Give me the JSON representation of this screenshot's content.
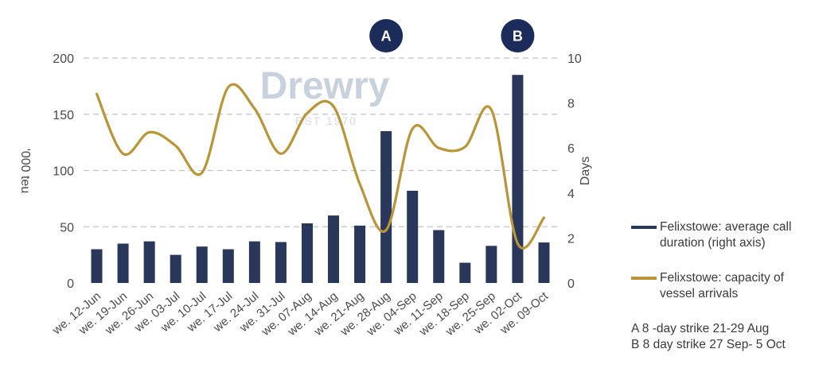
{
  "chart_data": {
    "type": "bar+line",
    "categories": [
      "we. 12-Jun",
      "we. 19-Jun",
      "we. 26-Jun",
      "we. 03-Jul",
      "we. 10-Jul",
      "we. 17-Jul",
      "we. 24-Jul",
      "we. 31-Jul",
      "we. 07-Aug",
      "we. 14-Aug",
      "we. 21-Aug",
      "we. 28-Aug",
      "we. 04-Sep",
      "we. 11-Sep",
      "we. 18-Sep",
      "we. 25-Sep",
      "we. 02-Oct",
      "we. 09-Oct"
    ],
    "series": [
      {
        "name": "Felixstowe: average call duration (right axis)",
        "kind": "bar",
        "axis": "right",
        "color": "#28375a",
        "values": [
          1.5,
          1.75,
          1.85,
          1.25,
          1.62,
          1.5,
          1.85,
          1.82,
          2.65,
          3.0,
          2.55,
          6.75,
          4.1,
          2.35,
          0.9,
          1.65,
          9.25,
          1.8
        ]
      },
      {
        "name": "Felixstowe: capacity of vessel arrivals",
        "kind": "line",
        "axis": "left",
        "color": "#b99538",
        "values": [
          168,
          115,
          134,
          122,
          98,
          174,
          155,
          115,
          151,
          157,
          88,
          47,
          137,
          120,
          121,
          154,
          35,
          58
        ]
      }
    ],
    "y_left": {
      "label": "'000 teu",
      "ticks": [
        "0",
        "50",
        "100",
        "150",
        "200"
      ],
      "range": [
        0,
        200
      ]
    },
    "y_right": {
      "label": "Days",
      "ticks": [
        "0",
        "2",
        "4",
        "6",
        "8",
        "10"
      ],
      "range": [
        0,
        10
      ]
    },
    "grid": true,
    "legend_position": "right",
    "markers": [
      {
        "label": "A",
        "category": "we. 28-Aug",
        "color": "#1b2c5a"
      },
      {
        "label": "B",
        "category": "we. 02-Oct",
        "color": "#1b2c5a"
      }
    ],
    "watermark": {
      "logo": "Drewry",
      "subtext": "EST 1970"
    }
  },
  "notes": [
    "A 8 -day strike 21-29 Aug",
    "B 8 day strike 27 Sep- 5 Oct"
  ],
  "legend": {
    "bar_label": "Felixstowe: average call duration (right axis)",
    "line_label": "Felixstowe: capacity of vessel arrivals"
  }
}
